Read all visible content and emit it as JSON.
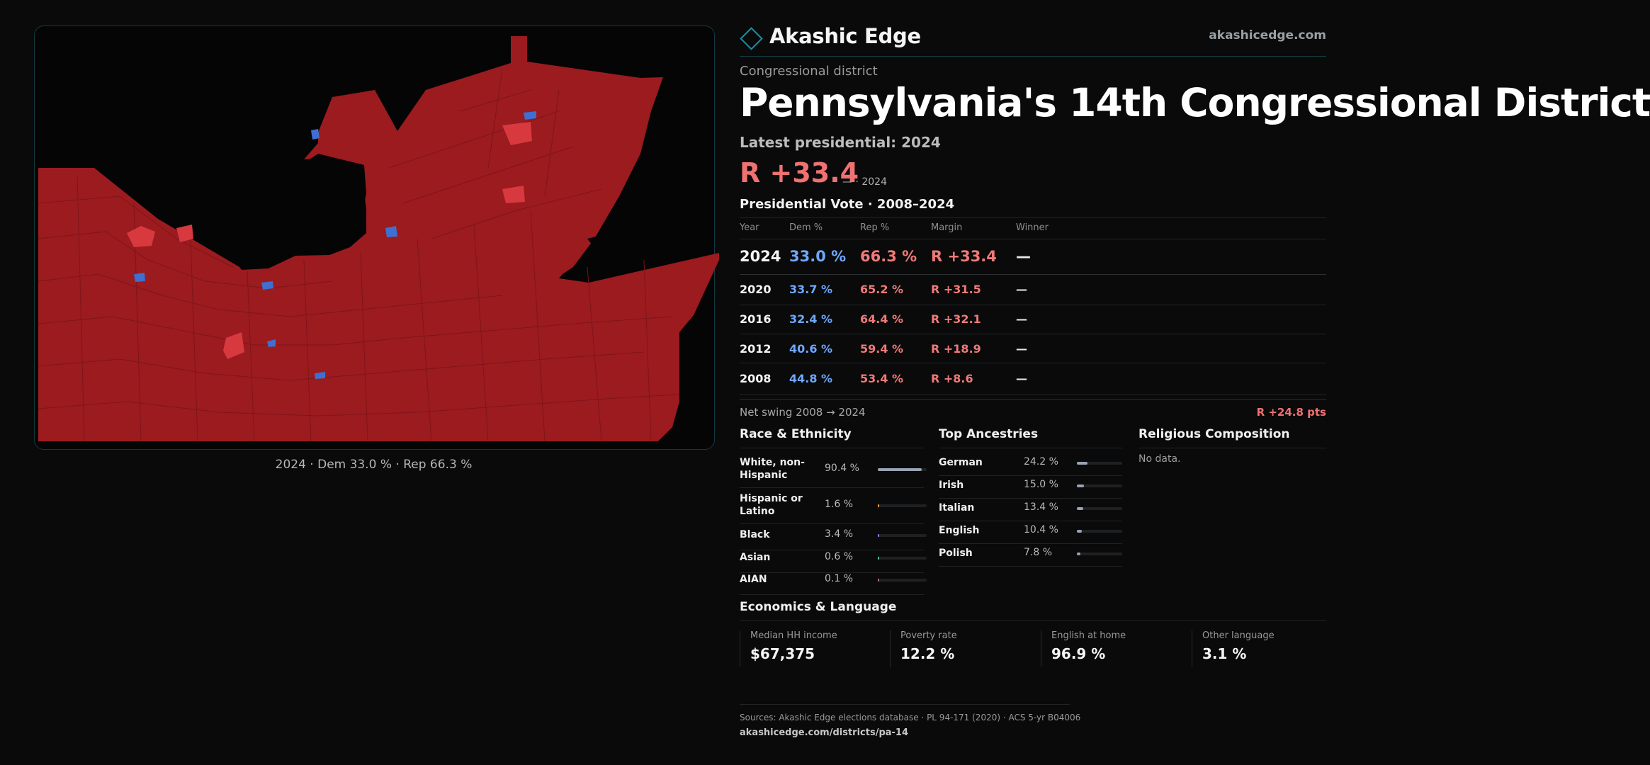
{
  "map": {
    "caption": "2024 · Dem 33.0 % · Rep 66.3 %",
    "colors": {
      "rep": "#9b1b1f",
      "rep_light": "#d7393f",
      "dem": "#3e6fd1",
      "background": "#050506"
    }
  },
  "brand": {
    "name": "Akashic Edge",
    "site": "akashicedge.com"
  },
  "header": {
    "kicker": "Congressional district",
    "title": "Pennsylvania's 14th Congressional District"
  },
  "latest": {
    "label": "Latest presidential: 2024",
    "margin": "R +33.4",
    "sub": "— · 2024"
  },
  "vote_table": {
    "title": "Presidential Vote · 2008–2024",
    "columns": [
      "Year",
      "Dem %",
      "Rep %",
      "Margin",
      "Winner"
    ],
    "rows": [
      {
        "year": "2024",
        "dem": "33.0 %",
        "rep": "66.3 %",
        "margin": "R +33.4",
        "winner": "—"
      },
      {
        "year": "2020",
        "dem": "33.7 %",
        "rep": "65.2 %",
        "margin": "R +31.5",
        "winner": "—"
      },
      {
        "year": "2016",
        "dem": "32.4 %",
        "rep": "64.4 %",
        "margin": "R +32.1",
        "winner": "—"
      },
      {
        "year": "2012",
        "dem": "40.6 %",
        "rep": "59.4 %",
        "margin": "R +18.9",
        "winner": "—"
      },
      {
        "year": "2008",
        "dem": "44.8 %",
        "rep": "53.4 %",
        "margin": "R +8.6",
        "winner": "—"
      }
    ],
    "swing_label": "Net swing 2008 → 2024",
    "swing_value": "R +24.8 pts"
  },
  "race": {
    "title": "Race & Ethnicity",
    "rows": [
      {
        "label": "White, non-Hispanic",
        "value": "90.4 %",
        "pct": 90.4,
        "color": "#9aa3b5"
      },
      {
        "label": "Hispanic or Latino",
        "value": "1.6 %",
        "pct": 1.6,
        "color": "#e0a34a"
      },
      {
        "label": "Black",
        "value": "3.4 %",
        "pct": 3.4,
        "color": "#8f7cf0"
      },
      {
        "label": "Asian",
        "value": "0.6 %",
        "pct": 0.6,
        "color": "#4fc2a0"
      },
      {
        "label": "AIAN",
        "value": "0.1 %",
        "pct": 0.1,
        "color": "#c46b6b"
      }
    ]
  },
  "ancestry": {
    "title": "Top Ancestries",
    "rows": [
      {
        "label": "German",
        "value": "24.2 %",
        "pct": 24.2
      },
      {
        "label": "Irish",
        "value": "15.0 %",
        "pct": 15.0
      },
      {
        "label": "Italian",
        "value": "13.4 %",
        "pct": 13.4
      },
      {
        "label": "English",
        "value": "10.4 %",
        "pct": 10.4
      },
      {
        "label": "Polish",
        "value": "7.8 %",
        "pct": 7.8
      }
    ],
    "bar_color": "#9aa3b5"
  },
  "religion": {
    "title": "Religious Composition",
    "empty": "No data."
  },
  "economics": {
    "title": "Economics & Language",
    "cells": [
      {
        "label": "Median HH income",
        "value": "$67,375"
      },
      {
        "label": "Poverty rate",
        "value": "12.2 %"
      },
      {
        "label": "English at home",
        "value": "96.9 %"
      },
      {
        "label": "Other language",
        "value": "3.1 %"
      }
    ]
  },
  "footer": {
    "sources": "Sources: Akashic Edge elections database · PL 94-171 (2020) · ACS 5-yr B04006",
    "url": "akashicedge.com/districts/pa-14"
  }
}
